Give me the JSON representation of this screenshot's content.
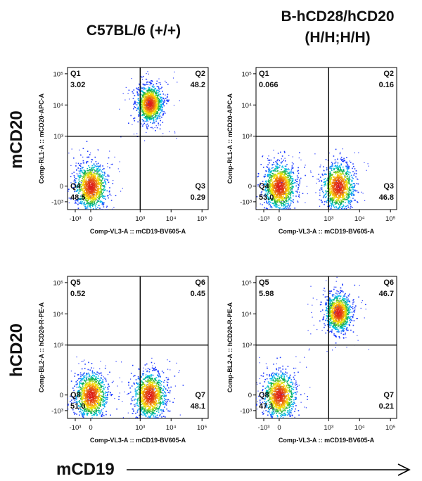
{
  "column_headers": {
    "left": "C57BL/6 (+/+)",
    "right_line1": "B-hCD28/hCD20",
    "right_line2": "(H/H;H/H)"
  },
  "row_headers": {
    "top": "mCD20",
    "bottom": "hCD20"
  },
  "bottom_axis_label": "mCD19",
  "colors": {
    "cell_high": "#d7191c",
    "cell_mid": "#ffeb00",
    "cell_low": "#00a651",
    "cell_sparse": "#1f3cff",
    "gate_line": "#000000",
    "arrow": "#000000"
  },
  "chart_data": [
    {
      "type": "scatter",
      "title": "C57BL/6 (+/+) mCD20",
      "xlabel": "Comp-VL3-A :: mCD19-BV605-A",
      "ylabel": "Comp-RL1-A :: mCD20-APC-A",
      "x_ticks": [
        "-10³",
        "0",
        "10³",
        "10⁴",
        "10⁵"
      ],
      "y_ticks": [
        "10⁵",
        "10⁴",
        "10³",
        "0",
        "-10³"
      ],
      "quadrants": [
        {
          "name": "Q1",
          "value": "3.02",
          "position": "top-left"
        },
        {
          "name": "Q2",
          "value": "48.2",
          "position": "top-right"
        },
        {
          "name": "Q4",
          "value": "48.5",
          "position": "bottom-left"
        },
        {
          "name": "Q3",
          "value": "0.29",
          "position": "bottom-right"
        }
      ],
      "populations": [
        {
          "x_axis_units": 0.0,
          "y_axis_units": 0.0,
          "percent": 48.5
        },
        {
          "x_axis_units": 3.3,
          "y_axis_units": 4.05,
          "percent": 48.2
        }
      ]
    },
    {
      "type": "scatter",
      "title": "B-hCD28/hCD20 (H/H;H/H) mCD20",
      "xlabel": "Comp-VL3-A :: mCD19-BV605-A",
      "ylabel": "Comp-RL1-A :: mCD20-APC-A",
      "x_ticks": [
        "-10³",
        "0",
        "10³",
        "10⁴",
        "10⁵"
      ],
      "y_ticks": [
        "10⁵",
        "10⁴",
        "10³",
        "0",
        "-10³"
      ],
      "quadrants": [
        {
          "name": "Q1",
          "value": "0.066",
          "position": "top-left"
        },
        {
          "name": "Q2",
          "value": "0.16",
          "position": "top-right"
        },
        {
          "name": "Q4",
          "value": "53.0",
          "position": "bottom-left"
        },
        {
          "name": "Q3",
          "value": "46.8",
          "position": "bottom-right"
        }
      ],
      "populations": [
        {
          "x_axis_units": 0.0,
          "y_axis_units": 0.0,
          "percent": 53.0
        },
        {
          "x_axis_units": 3.3,
          "y_axis_units": 0.0,
          "percent": 46.8
        }
      ]
    },
    {
      "type": "scatter",
      "title": "C57BL/6 (+/+) hCD20",
      "xlabel": "Comp-VL3-A :: mCD19-BV605-A",
      "ylabel": "Comp-BL2-A :: hCD20-R-PE-A",
      "x_ticks": [
        "-10³",
        "0",
        "10³",
        "10⁴",
        "10⁵"
      ],
      "y_ticks": [
        "10⁵",
        "10⁴",
        "10³",
        "0",
        "-10³"
      ],
      "quadrants": [
        {
          "name": "Q5",
          "value": "0.52",
          "position": "top-left"
        },
        {
          "name": "Q6",
          "value": "0.45",
          "position": "top-right"
        },
        {
          "name": "Q8",
          "value": "51.0",
          "position": "bottom-left"
        },
        {
          "name": "Q7",
          "value": "48.1",
          "position": "bottom-right"
        }
      ],
      "populations": [
        {
          "x_axis_units": 0.0,
          "y_axis_units": 0.0,
          "percent": 51.0
        },
        {
          "x_axis_units": 3.3,
          "y_axis_units": 0.0,
          "percent": 48.1
        }
      ]
    },
    {
      "type": "scatter",
      "title": "B-hCD28/hCD20 (H/H;H/H) hCD20",
      "xlabel": "Comp-VL3-A :: mCD19-BV605-A",
      "ylabel": "Comp-BL2-A :: hCD20-R-PE-A",
      "x_ticks": [
        "-10³",
        "0",
        "10³",
        "10⁴",
        "10⁵"
      ],
      "y_ticks": [
        "10⁵",
        "10⁴",
        "10³",
        "0",
        "-10³"
      ],
      "quadrants": [
        {
          "name": "Q5",
          "value": "5.98",
          "position": "top-left"
        },
        {
          "name": "Q6",
          "value": "46.7",
          "position": "top-right"
        },
        {
          "name": "Q8",
          "value": "47.1",
          "position": "bottom-left"
        },
        {
          "name": "Q7",
          "value": "0.21",
          "position": "bottom-right"
        }
      ],
      "populations": [
        {
          "x_axis_units": 0.0,
          "y_axis_units": 0.0,
          "percent": 47.1
        },
        {
          "x_axis_units": 3.3,
          "y_axis_units": 4.05,
          "percent": 46.7
        }
      ]
    }
  ]
}
